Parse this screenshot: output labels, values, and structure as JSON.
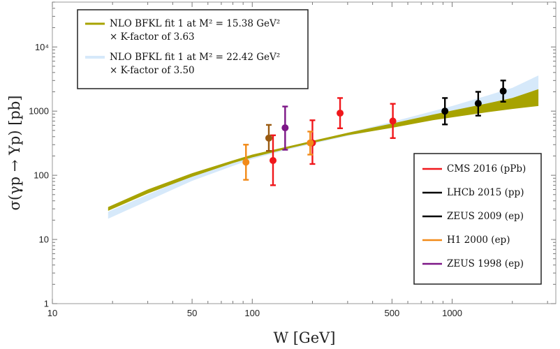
{
  "chart_data": {
    "type": "scatter",
    "xlabel": "W [GeV]",
    "ylabel": "σ(γp → Υp) [pb]",
    "x_scale": "log",
    "y_scale": "log",
    "xlim": [
      10,
      3300
    ],
    "ylim": [
      1,
      50000
    ],
    "x_ticks": [
      {
        "value": 10,
        "label": "10"
      },
      {
        "value": 50,
        "label": "50"
      },
      {
        "value": 100,
        "label": "100"
      },
      {
        "value": 500,
        "label": "500"
      },
      {
        "value": 1000,
        "label": "1000"
      }
    ],
    "y_ticks": [
      {
        "value": 1,
        "label": "1"
      },
      {
        "value": 10,
        "label": "10"
      },
      {
        "value": 100,
        "label": "100"
      },
      {
        "value": 1000,
        "label": "1000"
      },
      {
        "value": 10000,
        "label": "10⁴"
      }
    ],
    "bands": [
      {
        "name": "NLO BFKL fit 1 at M² = 15.38 GeV²",
        "name_line2": "× K-factor of 3.63",
        "color": "#a7a300",
        "x": [
          19,
          30,
          50,
          80,
          100,
          150,
          200,
          300,
          500,
          800,
          1000,
          1500,
          2000,
          2700
        ],
        "lower": [
          28,
          52,
          95,
          155,
          190,
          260,
          320,
          420,
          550,
          720,
          800,
          960,
          1080,
          1200
        ],
        "upper": [
          32,
          60,
          108,
          170,
          210,
          280,
          345,
          460,
          640,
          880,
          1020,
          1320,
          1600,
          2200
        ]
      },
      {
        "name": "NLO BFKL fit 1 at M² = 22.42 GeV²",
        "name_line2": "× K-factor of 3.50",
        "color": "#d6e9fa",
        "x": [
          19,
          30,
          50,
          80,
          100,
          150,
          200,
          300,
          500,
          800,
          1000,
          1500,
          2000,
          2700
        ],
        "lower": [
          21,
          40,
          82,
          140,
          180,
          250,
          310,
          410,
          560,
          760,
          860,
          1080,
          1260,
          1500
        ],
        "upper": [
          27,
          50,
          98,
          160,
          205,
          280,
          340,
          460,
          680,
          1000,
          1200,
          1750,
          2300,
          3600
        ]
      }
    ],
    "series": [
      {
        "name": "CMS 2016 (pPb)",
        "color": "#f0171b",
        "points": [
          {
            "x": 127,
            "y": 170,
            "ylo": 70,
            "yhi": 420
          },
          {
            "x": 200,
            "y": 320,
            "ylo": 150,
            "yhi": 720
          },
          {
            "x": 275,
            "y": 930,
            "ylo": 540,
            "yhi": 1600
          },
          {
            "x": 505,
            "y": 700,
            "ylo": 380,
            "yhi": 1300
          }
        ]
      },
      {
        "name": "LHCb 2015 (pp)",
        "color": "#000000",
        "points": [
          {
            "x": 1350,
            "y": 1320,
            "ylo": 850,
            "yhi": 2000
          },
          {
            "x": 1800,
            "y": 2050,
            "ylo": 1400,
            "yhi": 3000
          }
        ]
      },
      {
        "name": "ZEUS 2009 (ep)",
        "color": "#000000",
        "points": [
          {
            "x": 920,
            "y": 1000,
            "ylo": 620,
            "yhi": 1600
          }
        ]
      },
      {
        "name": "H1 2000 (ep)",
        "color": "#f28a18",
        "points": [
          {
            "x": 93,
            "y": 160,
            "ylo": 85,
            "yhi": 300
          },
          {
            "x": 195,
            "y": 320,
            "ylo": 210,
            "yhi": 480
          }
        ]
      },
      {
        "name": "ZEUS 1998 (ep)",
        "color": "#7d1787",
        "points": [
          {
            "x": 146,
            "y": 550,
            "ylo": 250,
            "yhi": 1180
          }
        ]
      },
      {
        "name": "",
        "color": "#9a5a10",
        "points": [
          {
            "x": 121,
            "y": 380,
            "ylo": 240,
            "yhi": 610
          }
        ]
      }
    ],
    "legend_bands_position": "top-left",
    "legend_points_position": "bottom-right",
    "grid": false
  }
}
